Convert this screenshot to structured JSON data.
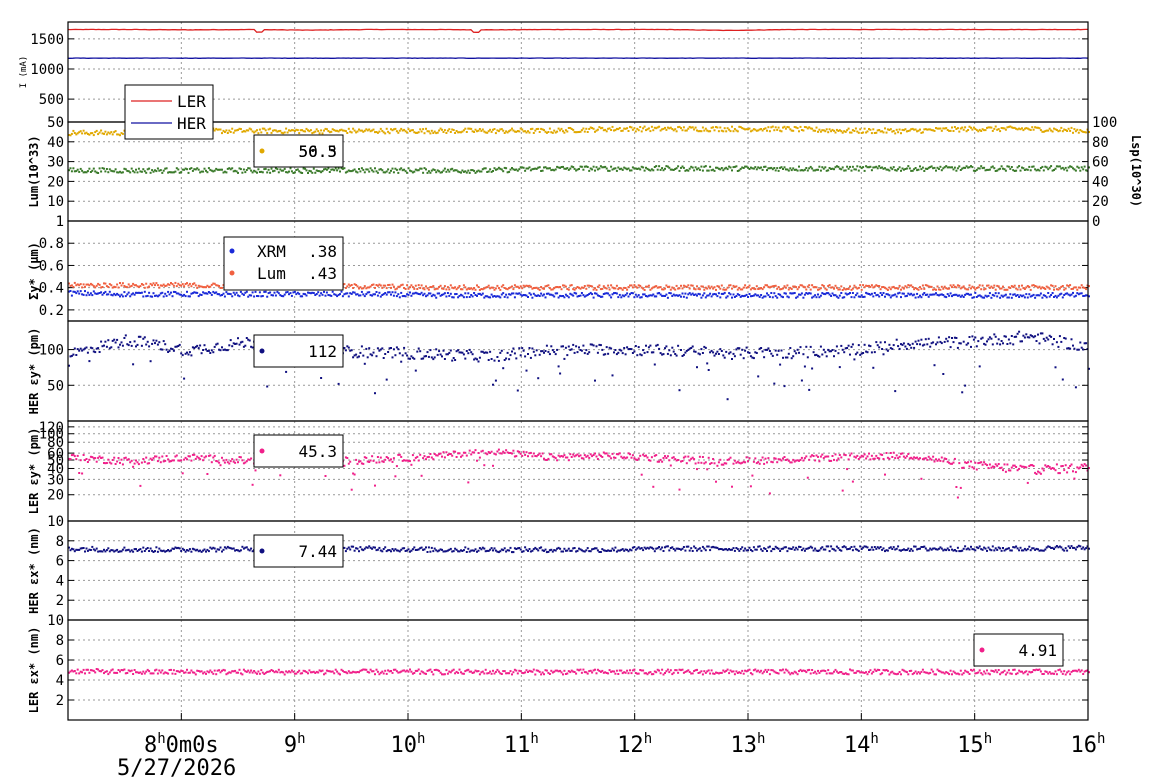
{
  "chart_data": [
    {
      "type": "line",
      "panel": "beam-current",
      "ylabel": "I (mA)",
      "yticks": [
        500,
        1000,
        1500
      ],
      "ylim": [
        120,
        1780
      ],
      "series": [
        {
          "name": "LER",
          "color": "#dd2020",
          "values": [
            1655,
            1655,
            1650,
            1655,
            1645,
            1655,
            1655,
            1650,
            1655,
            1655,
            1655,
            1640,
            1655,
            1655,
            1655,
            1655,
            1655,
            1655
          ]
        },
        {
          "name": "HER",
          "color": "#1010a0",
          "values": [
            1180,
            1180,
            1180,
            1180,
            1180,
            1180,
            1180,
            1180,
            1180,
            1180,
            1180,
            1180,
            1180,
            1180,
            1180,
            1180,
            1180,
            1180
          ]
        }
      ],
      "legend": [
        {
          "label": "LER",
          "color": "#dd2020"
        },
        {
          "label": "HER",
          "color": "#1010a0"
        }
      ]
    },
    {
      "type": "scatter",
      "panel": "luminosity",
      "ylabel": "Lum(10^33)",
      "ylabel_right": "Lsp(10^30)",
      "yticks": [
        10,
        20,
        30,
        40,
        50
      ],
      "yticks_right": [
        0,
        20,
        40,
        60,
        80,
        100
      ],
      "ylim": [
        0,
        50
      ],
      "series": [
        {
          "color": "#e0a800",
          "values": [
            45,
            45,
            46,
            46,
            46,
            46,
            46,
            46,
            46,
            47,
            47,
            47,
            47,
            46,
            46,
            47,
            47,
            46
          ]
        },
        {
          "color": "#3a7a2a",
          "values": [
            26,
            26,
            26,
            26,
            26,
            26,
            26,
            26,
            27,
            27,
            27,
            27,
            27,
            27,
            27,
            27,
            27,
            27
          ]
        }
      ],
      "legend_values": [
        "56.5",
        "50.3"
      ]
    },
    {
      "type": "scatter",
      "panel": "sigma-y",
      "ylabel": "Σy* (μm)",
      "yticks": [
        "0.2",
        "0.4",
        "0.6",
        "0.8",
        "1"
      ],
      "ylim": [
        0.1,
        1.0
      ],
      "series": [
        {
          "name": "XRM",
          "color": "#1a2ad8",
          "values": [
            0.36,
            0.35,
            0.35,
            0.35,
            0.35,
            0.35,
            0.34,
            0.34,
            0.34,
            0.34,
            0.34,
            0.34,
            0.34,
            0.34,
            0.34,
            0.34,
            0.34,
            0.34
          ]
        },
        {
          "name": "Lum",
          "color": "#f06040",
          "values": [
            0.43,
            0.43,
            0.43,
            0.42,
            0.42,
            0.42,
            0.41,
            0.41,
            0.41,
            0.41,
            0.41,
            0.41,
            0.41,
            0.41,
            0.41,
            0.41,
            0.41,
            0.41
          ]
        }
      ],
      "legend": [
        {
          "label": "XRM",
          "value": ".38",
          "color": "#1a2ad8"
        },
        {
          "label": "Lum",
          "value": ".43",
          "color": "#f06040"
        }
      ]
    },
    {
      "type": "scatter",
      "panel": "her-ey",
      "ylabel": "HER εy* (pm)",
      "yticks": [
        50,
        100
      ],
      "ylim": [
        0,
        140
      ],
      "series": [
        {
          "color": "#101080",
          "values": [
            95,
            115,
            100,
            112,
            100,
            98,
            95,
            92,
            100,
            102,
            100,
            96,
            97,
            100,
            110,
            112,
            120,
            105
          ]
        }
      ],
      "legend_values": [
        "112"
      ]
    },
    {
      "type": "scatter",
      "panel": "ler-ey",
      "ylabel": "LER εy* (pm)",
      "yticks": [
        10,
        20,
        30,
        40,
        50,
        60,
        80,
        100,
        120
      ],
      "ylim": [
        10,
        140
      ],
      "series": [
        {
          "color": "#f0208a",
          "values": [
            55,
            50,
            55,
            50,
            48,
            52,
            56,
            65,
            55,
            58,
            53,
            50,
            52,
            56,
            58,
            45,
            40,
            42
          ]
        }
      ],
      "legend_values": [
        "45.3"
      ]
    },
    {
      "type": "scatter",
      "panel": "her-ex",
      "ylabel": "HER εx* (nm)",
      "yticks": [
        2,
        4,
        6,
        8
      ],
      "ylim": [
        0,
        10
      ],
      "series": [
        {
          "color": "#101080",
          "values": [
            7.3,
            7.2,
            7.2,
            7.3,
            7.3,
            7.3,
            7.2,
            7.2,
            7.2,
            7.2,
            7.3,
            7.3,
            7.3,
            7.3,
            7.3,
            7.3,
            7.3,
            7.4
          ]
        }
      ],
      "legend_values": [
        "7.44"
      ]
    },
    {
      "type": "scatter",
      "panel": "ler-ex",
      "ylabel": "LER εx* (nm)",
      "yticks": [
        2,
        4,
        6,
        8,
        10
      ],
      "ylim": [
        0,
        10
      ],
      "series": [
        {
          "color": "#f0208a",
          "values": [
            5.0,
            4.9,
            4.9,
            4.9,
            4.9,
            4.9,
            4.9,
            4.9,
            4.9,
            4.9,
            4.9,
            4.9,
            4.9,
            4.9,
            4.9,
            4.9,
            4.9,
            4.9
          ]
        }
      ],
      "legend_values": [
        "4.91"
      ]
    }
  ],
  "x_axis": {
    "x_hours_range": [
      7.0,
      16.0
    ],
    "ticks": [
      {
        "hour": 8,
        "label": "8",
        "suffix": "h",
        "extra": "0m0s"
      },
      {
        "hour": 9,
        "label": "9",
        "suffix": "h"
      },
      {
        "hour": 10,
        "label": "10",
        "suffix": "h"
      },
      {
        "hour": 11,
        "label": "11",
        "suffix": "h"
      },
      {
        "hour": 12,
        "label": "12",
        "suffix": "h"
      },
      {
        "hour": 13,
        "label": "13",
        "suffix": "h"
      },
      {
        "hour": 14,
        "label": "14",
        "suffix": "h"
      },
      {
        "hour": 15,
        "label": "15",
        "suffix": "h"
      },
      {
        "hour": 16,
        "label": "16",
        "suffix": "h"
      }
    ],
    "date_label": "5/27/2026"
  }
}
